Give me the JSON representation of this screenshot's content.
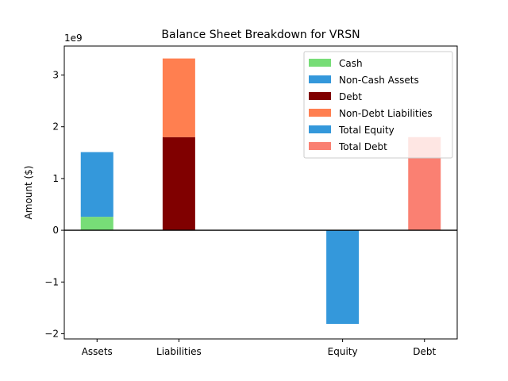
{
  "chart_data": {
    "type": "bar",
    "stacked": true,
    "title": "Balance Sheet Breakdown for VRSN",
    "xlabel": "",
    "ylabel": "Amount ($)",
    "y_offset_label": "1e9",
    "categories": [
      "Assets",
      "Liabilities",
      "Equity",
      "Debt"
    ],
    "x_positions": [
      0,
      1,
      3,
      4
    ],
    "xlim": [
      -0.4,
      4.4
    ],
    "ylim": [
      -2.1,
      3.56
    ],
    "y_ticks": [
      -2,
      -1,
      0,
      1,
      2,
      3
    ],
    "y_unit_multiplier": 1000000000,
    "zero_line": true,
    "grid": false,
    "legend_position": "top-right",
    "series": [
      {
        "name": "Cash",
        "color": "#77dd77",
        "x": 0,
        "base": 0,
        "value": 0.26
      },
      {
        "name": "Non-Cash Assets",
        "color": "#3498db",
        "x": 0,
        "base": 0.26,
        "value": 1.25
      },
      {
        "name": "Debt",
        "color": "#800000",
        "x": 1,
        "base": 0,
        "value": 1.8
      },
      {
        "name": "Non-Debt Liabilities",
        "color": "#ff7f50",
        "x": 1,
        "base": 1.8,
        "value": 1.52
      },
      {
        "name": "Total Equity",
        "color": "#3498db",
        "x": 3,
        "base": 0,
        "value": -1.81
      },
      {
        "name": "Total Debt",
        "color": "#fa8072",
        "x": 4,
        "base": 0,
        "value": 1.8
      }
    ]
  }
}
